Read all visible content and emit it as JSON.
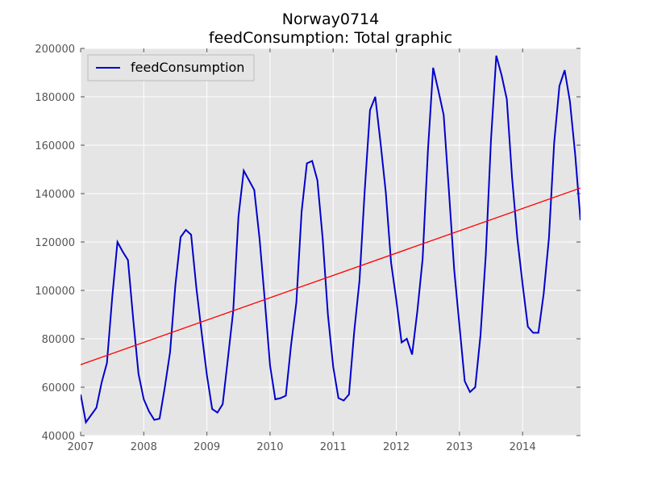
{
  "chart_data": {
    "type": "line",
    "title": "Norway0714",
    "subtitle": "feedConsumption: Total graphic",
    "xlabel": "",
    "ylabel": "",
    "xlim": [
      2007.0,
      2014.917
    ],
    "ylim": [
      40000,
      200000
    ],
    "x_ticks": [
      2007,
      2008,
      2009,
      2010,
      2011,
      2012,
      2013,
      2014
    ],
    "x_tick_labels": [
      "2007",
      "2008",
      "2009",
      "2010",
      "2011",
      "2012",
      "2013",
      "2014"
    ],
    "y_ticks": [
      40000,
      60000,
      80000,
      100000,
      120000,
      140000,
      160000,
      180000,
      200000
    ],
    "y_tick_labels": [
      "40000",
      "60000",
      "80000",
      "100000",
      "120000",
      "140000",
      "160000",
      "180000",
      "200000"
    ],
    "grid": true,
    "legend_position": "top-left",
    "series": [
      {
        "name": "feedConsumption",
        "color": "#0000cc",
        "x": [
          "2007-01",
          "2007-02",
          "2007-03",
          "2007-04",
          "2007-05",
          "2007-06",
          "2007-07",
          "2007-08",
          "2007-09",
          "2007-10",
          "2007-11",
          "2007-12",
          "2008-01",
          "2008-02",
          "2008-03",
          "2008-04",
          "2008-05",
          "2008-06",
          "2008-07",
          "2008-08",
          "2008-09",
          "2008-10",
          "2008-11",
          "2008-12",
          "2009-01",
          "2009-02",
          "2009-03",
          "2009-04",
          "2009-05",
          "2009-06",
          "2009-07",
          "2009-08",
          "2009-09",
          "2009-10",
          "2009-11",
          "2009-12",
          "2010-01",
          "2010-02",
          "2010-03",
          "2010-04",
          "2010-05",
          "2010-06",
          "2010-07",
          "2010-08",
          "2010-09",
          "2010-10",
          "2010-11",
          "2010-12",
          "2011-01",
          "2011-02",
          "2011-03",
          "2011-04",
          "2011-05",
          "2011-06",
          "2011-07",
          "2011-08",
          "2011-09",
          "2011-10",
          "2011-11",
          "2011-12",
          "2012-01",
          "2012-02",
          "2012-03",
          "2012-04",
          "2012-05",
          "2012-06",
          "2012-07",
          "2012-08",
          "2012-09",
          "2012-10",
          "2012-11",
          "2012-12",
          "2013-01",
          "2013-02",
          "2013-03",
          "2013-04",
          "2013-05",
          "2013-06",
          "2013-07",
          "2013-08",
          "2013-09",
          "2013-10",
          "2013-11",
          "2013-12",
          "2014-01",
          "2014-02",
          "2014-03",
          "2014-04",
          "2014-05",
          "2014-06",
          "2014-07",
          "2014-08",
          "2014-09",
          "2014-10",
          "2014-11",
          "2014-12"
        ],
        "values": [
          57000,
          45500,
          48500,
          51500,
          62000,
          70000,
          97000,
          120000,
          116000,
          112500,
          88000,
          65500,
          55000,
          50000,
          46500,
          47000,
          60000,
          74500,
          102000,
          122000,
          125000,
          123000,
          101000,
          82500,
          65000,
          51000,
          49500,
          53000,
          72000,
          91500,
          130500,
          149500,
          145500,
          141500,
          121500,
          96000,
          69000,
          55000,
          55500,
          56500,
          77500,
          95000,
          132500,
          152500,
          153500,
          145500,
          121500,
          90000,
          68500,
          55500,
          54500,
          57000,
          83000,
          104000,
          141500,
          174500,
          180000,
          161000,
          140500,
          111500,
          96000,
          78500,
          80000,
          73500,
          91500,
          113000,
          157500,
          192000,
          182500,
          172500,
          141000,
          108500,
          85500,
          62500,
          58000,
          60000,
          81500,
          114500,
          162500,
          197000,
          189000,
          179000,
          146500,
          121500,
          102500,
          85000,
          82500,
          82500,
          98500,
          121500,
          161000,
          184500,
          191000,
          178000,
          156000,
          129000
        ]
      },
      {
        "name": "",
        "color": "#ff0000",
        "x": [
          "2007-01",
          "2014-12"
        ],
        "values": [
          69300,
          142300
        ]
      }
    ]
  }
}
